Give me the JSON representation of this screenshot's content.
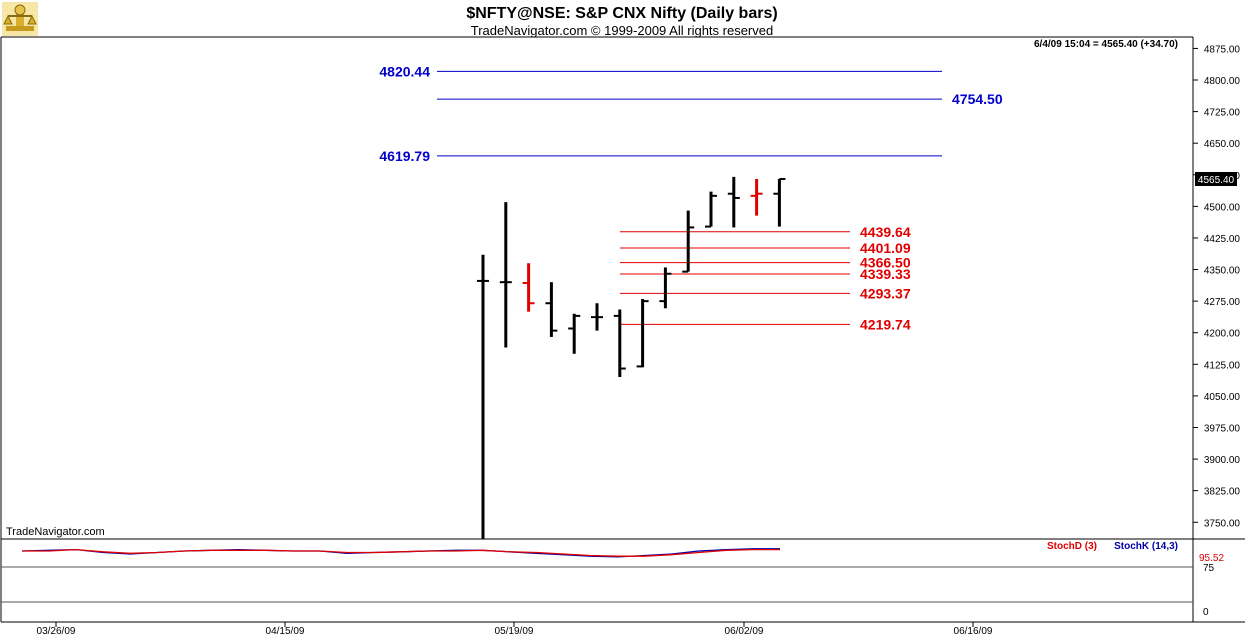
{
  "header": {
    "title": "$NFTY@NSE:  S&P CNX Nifty  (Daily bars)",
    "subtitle": "TradeNavigator.com © 1999-2009 All rights reserved",
    "readout": "6/4/09 15:04 = 4565.40 (+34.70)"
  },
  "watermark": "TradeNavigator.com",
  "colors": {
    "bar": "#000000",
    "bar_highlight": "#e00000",
    "level_blue": "#0000cc",
    "level_red": "#e00000",
    "stoch_d": "#e00000",
    "stoch_k": "#0000aa",
    "last_price_bg": "#000000"
  },
  "chart_data": {
    "type": "ohlc-bar",
    "y_axis": {
      "ylim": [
        3715,
        4895
      ],
      "ticks": [
        "4875.00",
        "4800.00",
        "4725.00",
        "4650.00",
        "4575.00",
        "4500.00",
        "4425.00",
        "4350.00",
        "4275.00",
        "4200.00",
        "4125.00",
        "4050.00",
        "3975.00",
        "3900.00",
        "3825.00",
        "3750.00"
      ]
    },
    "x_axis": {
      "ticks": [
        "03/26/09",
        "04/15/09",
        "05/19/09",
        "06/02/09",
        "06/16/09"
      ]
    },
    "last_price_label": "4565.40",
    "bars": [
      {
        "date": "05/18/09",
        "open": 4323,
        "high": 4385,
        "low": 3710,
        "close": 4323,
        "highlight": false
      },
      {
        "date": "05/19/09",
        "open": 4320,
        "high": 4510,
        "low": 4165,
        "close": 4320,
        "highlight": false
      },
      {
        "date": "05/20/09",
        "open": 4318,
        "high": 4365,
        "low": 4250,
        "close": 4270,
        "highlight": true
      },
      {
        "date": "05/21/09",
        "open": 4270,
        "high": 4320,
        "low": 4190,
        "close": 4205,
        "highlight": false
      },
      {
        "date": "05/22/09",
        "open": 4210,
        "high": 4245,
        "low": 4150,
        "close": 4240,
        "highlight": false
      },
      {
        "date": "05/25/09",
        "open": 4237,
        "high": 4270,
        "low": 4205,
        "close": 4237,
        "highlight": false
      },
      {
        "date": "05/26/09",
        "open": 4240,
        "high": 4255,
        "low": 4095,
        "close": 4115,
        "highlight": false
      },
      {
        "date": "05/27/09",
        "open": 4120,
        "high": 4280,
        "low": 4118,
        "close": 4275,
        "highlight": false
      },
      {
        "date": "05/28/09",
        "open": 4275,
        "high": 4355,
        "low": 4258,
        "close": 4340,
        "highlight": false
      },
      {
        "date": "05/29/09",
        "open": 4345,
        "high": 4490,
        "low": 4345,
        "close": 4450,
        "highlight": false
      },
      {
        "date": "06/01/09",
        "open": 4452,
        "high": 4535,
        "low": 4452,
        "close": 4525,
        "highlight": false
      },
      {
        "date": "06/02/09",
        "open": 4530,
        "high": 4570,
        "low": 4450,
        "close": 4520,
        "highlight": false
      },
      {
        "date": "06/03/09",
        "open": 4525,
        "high": 4565,
        "low": 4478,
        "close": 4530,
        "highlight": true
      },
      {
        "date": "06/04/09",
        "open": 4530,
        "high": 4565,
        "low": 4452,
        "close": 4565,
        "highlight": false
      }
    ],
    "levels_blue": [
      {
        "label": "4820.44",
        "value": 4820.44,
        "label_side": "left"
      },
      {
        "label": "4754.50",
        "value": 4754.5,
        "label_side": "right"
      },
      {
        "label": "4619.79",
        "value": 4619.79,
        "label_side": "left"
      }
    ],
    "levels_red": [
      {
        "label": "4439.64",
        "value": 4439.64
      },
      {
        "label": "4401.09",
        "value": 4401.09
      },
      {
        "label": "4366.50",
        "value": 4366.5
      },
      {
        "label": "4339.33",
        "value": 4339.33
      },
      {
        "label": "4293.37",
        "value": 4293.37
      },
      {
        "label": "4219.74",
        "value": 4219.74
      }
    ],
    "stochastic": {
      "legend_d": "StochD (3)",
      "legend_k": "StochK (14,3)",
      "last_value_label": "95.52",
      "axis_labels": [
        "75",
        "0"
      ],
      "ylim": [
        0,
        110
      ],
      "d_values": [
        95,
        95,
        97,
        94,
        92,
        93,
        95,
        96,
        96,
        96,
        95,
        95,
        93,
        93,
        94,
        95,
        95,
        96,
        94,
        93,
        91,
        89,
        88,
        88,
        90,
        93,
        96,
        97,
        97
      ],
      "k_values": [
        95,
        96,
        97,
        93,
        91,
        93,
        95,
        96,
        97,
        96,
        95,
        95,
        92,
        93,
        94,
        95,
        96,
        96,
        94,
        92,
        90,
        88,
        87,
        89,
        91,
        95,
        97,
        98,
        98
      ]
    }
  }
}
